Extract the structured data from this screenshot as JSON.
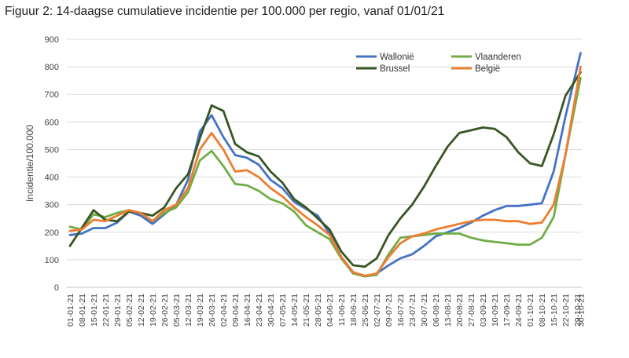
{
  "page": {
    "title": "Figuur 2: 14-daagse cumulatieve incidentie per 100.000 per regio, vanaf 01/01/21"
  },
  "chart_data": {
    "type": "line",
    "title": "Figuur 2: 14-daagse cumulatieve incidentie per 100.000 per regio, vanaf 01/01/21",
    "xlabel": "",
    "ylabel": "Incidentie/100.000",
    "ylim": [
      0,
      900
    ],
    "yticks": [
      0,
      100,
      200,
      300,
      400,
      500,
      600,
      700,
      800,
      900
    ],
    "grid": true,
    "legend_position": "top-right",
    "x": [
      "01-01-21",
      "08-01-21",
      "15-01-21",
      "22-01-21",
      "29-01-21",
      "05-02-21",
      "12-02-21",
      "19-02-21",
      "26-02-21",
      "05-03-21",
      "12-03-21",
      "19-03-21",
      "26-03-21",
      "02-04-21",
      "09-04-21",
      "16-04-21",
      "23-04-21",
      "30-04-21",
      "07-05-21",
      "14-05-21",
      "21-05-21",
      "28-05-21",
      "04-06-21",
      "11-06-21",
      "18-06-21",
      "25-06-21",
      "02-07-21",
      "09-07-21",
      "16-07-21",
      "23-07-21",
      "30-07-21",
      "06-08-21",
      "13-08-21",
      "20-08-21",
      "27-08-21",
      "03-09-21",
      "10-09-21",
      "17-09-21",
      "24-09-21",
      "01-10-21",
      "08-10-21",
      "15-10-21",
      "22-10-21",
      "29-10-21"
    ],
    "x_last_point": "30-10-21",
    "series": [
      {
        "name": "Wallonië",
        "color": "#4472C4",
        "values": [
          190,
          195,
          215,
          215,
          235,
          275,
          260,
          230,
          265,
          300,
          390,
          565,
          625,
          545,
          480,
          470,
          445,
          390,
          360,
          310,
          285,
          260,
          195,
          110,
          55,
          40,
          50,
          80,
          105,
          120,
          150,
          185,
          200,
          215,
          235,
          260,
          280,
          295,
          295,
          300,
          305,
          420,
          620,
          850
        ]
      },
      {
        "name": "Vlaanderen",
        "color": "#70AD47",
        "values": [
          220,
          210,
          265,
          255,
          270,
          280,
          270,
          240,
          270,
          290,
          345,
          460,
          495,
          440,
          375,
          370,
          350,
          320,
          305,
          275,
          225,
          200,
          175,
          105,
          50,
          40,
          45,
          120,
          180,
          185,
          190,
          195,
          195,
          195,
          180,
          170,
          165,
          160,
          155,
          155,
          180,
          255,
          480,
          760
        ]
      },
      {
        "name": "Brussel",
        "color": "#375623",
        "values": [
          150,
          215,
          280,
          245,
          240,
          275,
          270,
          260,
          290,
          360,
          410,
          540,
          660,
          640,
          520,
          490,
          475,
          420,
          380,
          320,
          290,
          250,
          210,
          130,
          80,
          75,
          105,
          190,
          250,
          300,
          365,
          440,
          510,
          560,
          570,
          580,
          575,
          545,
          490,
          450,
          440,
          555,
          695,
          780
        ]
      },
      {
        "name": "België",
        "color": "#ED7D31",
        "values": [
          205,
          210,
          245,
          240,
          260,
          280,
          270,
          240,
          280,
          300,
          360,
          500,
          560,
          500,
          420,
          425,
          400,
          360,
          330,
          290,
          255,
          225,
          190,
          110,
          55,
          42,
          50,
          110,
          160,
          185,
          195,
          210,
          220,
          230,
          240,
          245,
          245,
          240,
          240,
          230,
          235,
          300,
          480,
          800
        ]
      }
    ]
  }
}
